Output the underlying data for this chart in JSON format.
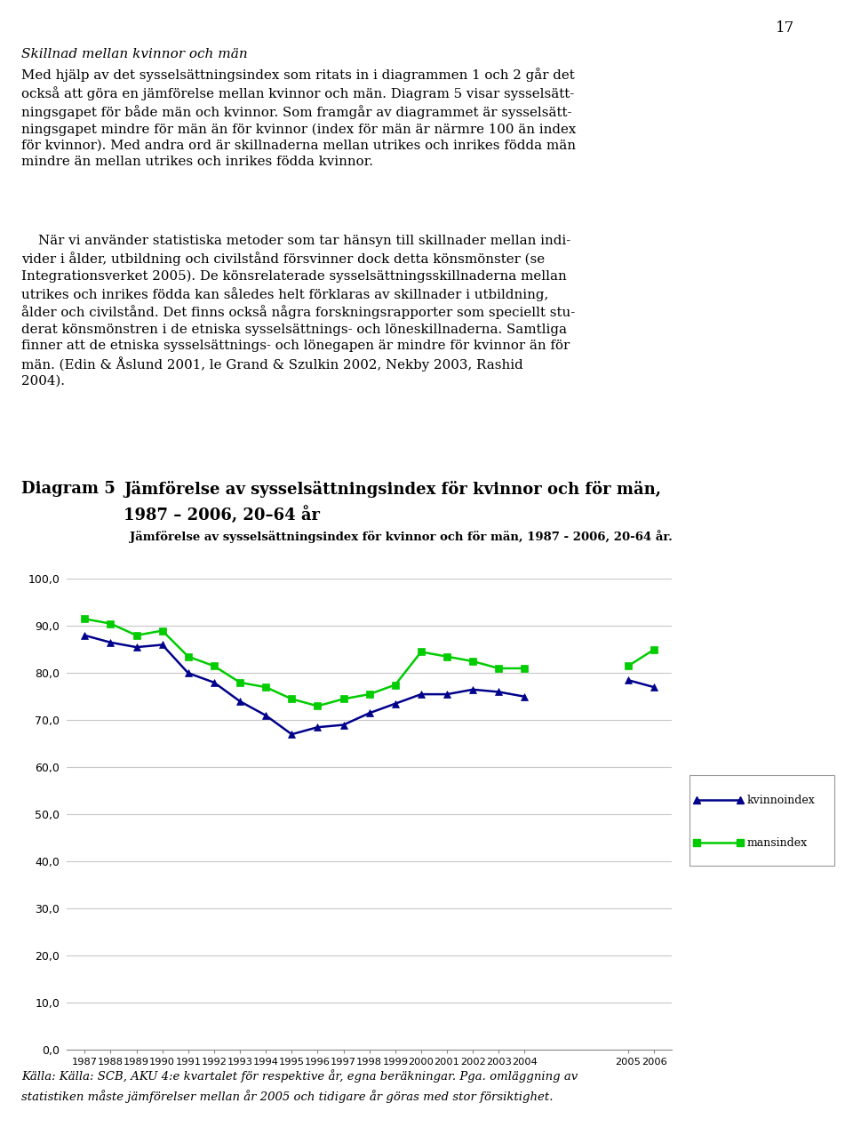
{
  "page_number": "17",
  "heading_italic": "Skillnad mellan kvinnor och män",
  "body_text_p1": "Med hjälp av det sysselsättningsindex som ritats in i diagrammen 1 och 2 går det\nockså att göra en jämförelse mellan kvinnor och män. Diagram 5 visar sysselsätt-\nningsgapet för både män och kvinnor. Som framgår av diagrammet är sysselsätt-\nningsgapet mindre för män än för kvinnor (index för män är närmre 100 än index\nför kvinnor). Med andra ord är skillnaderna mellan utrikes och inrikes födda män\nmindre än mellan utrikes och inrikes födda kvinnor.",
  "body_text_p2": "    När vi använder statistiska metoder som tar hänsyn till skillnader mellan indi-\nvider i ålder, utbildning och civilstånd försvinner dock detta könsmönster (se\nIntegrationsverket 2005). De könsrelaterade sysselsättningsskillnaderna mellan\nutrikes och inrikes födda kan således helt förklaras av skillnader i utbildning,\nålder och civilstånd. Det finns också några forskningsrapporter som speciellt stu-\nderat könsmönstren i de etniska sysselsättnings- och löneskillnaderna. Samtliga\nfinner att de etniska sysselsättnings- och lönegapen är mindre för kvinnor än för\nmän. (Edin & Åslund 2001, le Grand & Szulkin 2002, Nekby 2003, Rashid\n2004).",
  "diagram_label": "Diagram 5",
  "diagram_title_line1": "Jämförelse av sysselsättningsindex för kvinnor och för män,",
  "diagram_title_line2": "1987 – 2006, 20–64 år",
  "chart_title": "Jämförelse av sysselsättningsindex för kvinnor och för män, 1987 - 2006, 20-64 år.",
  "years_segment1": [
    1987,
    1988,
    1989,
    1990,
    1991,
    1992,
    1993,
    1994,
    1995,
    1996,
    1997,
    1998,
    1999,
    2000,
    2001,
    2002,
    2003,
    2004
  ],
  "years_segment2": [
    2005,
    2006
  ],
  "kvinnoindex_s1": [
    88.0,
    86.5,
    85.5,
    86.0,
    80.0,
    78.0,
    74.0,
    71.0,
    67.0,
    68.5,
    69.0,
    71.5,
    73.5,
    75.5,
    75.5,
    76.5,
    76.0,
    75.0
  ],
  "kvinnoindex_s2": [
    78.5,
    77.0
  ],
  "mansindex_s1": [
    91.5,
    90.5,
    88.0,
    89.0,
    83.5,
    81.5,
    78.0,
    77.0,
    74.5,
    73.0,
    74.5,
    75.5,
    77.5,
    84.5,
    83.5,
    82.5,
    81.0,
    81.0
  ],
  "mansindex_s2": [
    81.5,
    85.0
  ],
  "ylim": [
    0,
    100
  ],
  "yticks": [
    0.0,
    10.0,
    20.0,
    30.0,
    40.0,
    50.0,
    60.0,
    70.0,
    80.0,
    90.0,
    100.0
  ],
  "kvinno_color": "#00008B",
  "mans_color": "#00CC00",
  "legend_kvinno": "kvinnoindex",
  "legend_mans": "mansindex",
  "source_text_line1": "Källa: Källa: SCB, AKU 4:e kvartalet för respektive år, egna beräkningar. Pga. omläggning av",
  "source_text_line2": "statistiken måste jämförelser mellan år 2005 och tidigare år göras med stor försiktighet.",
  "background_color": "#ffffff",
  "grid_color": "#c8c8c8"
}
